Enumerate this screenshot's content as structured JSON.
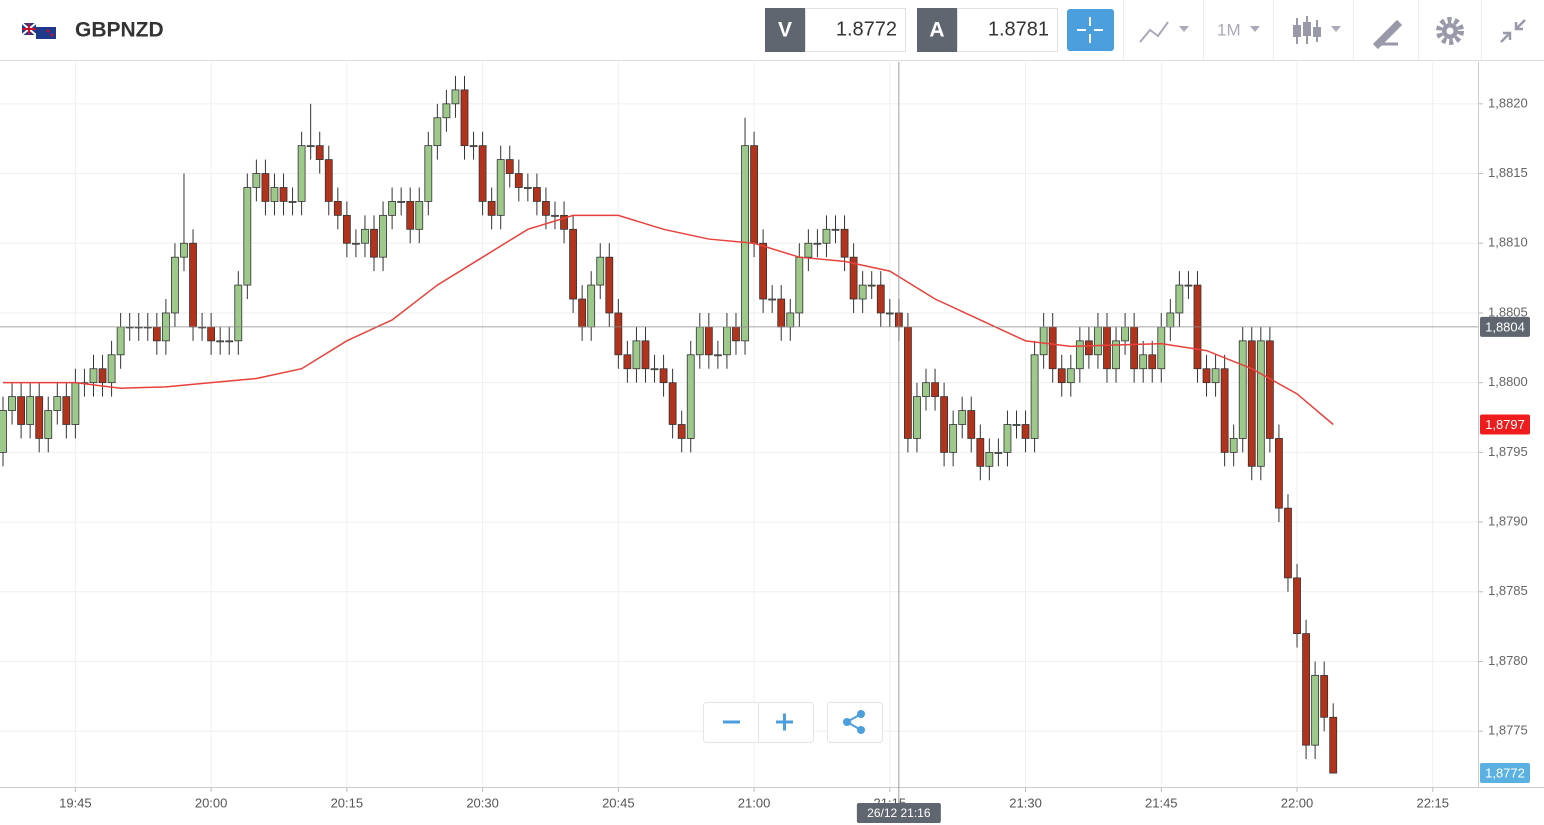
{
  "header": {
    "symbol": "GBPNZD",
    "sell_label": "V",
    "sell": "1.8772",
    "buy_label": "A",
    "buy": "1.8781",
    "timeframe": "1M"
  },
  "chart_data": {
    "type": "candlestick",
    "x": [
      "19:37",
      "19:38",
      "19:39",
      "19:40",
      "19:41",
      "19:42",
      "19:43",
      "19:44",
      "19:45",
      "19:46",
      "19:47",
      "19:48",
      "19:49",
      "19:50",
      "19:51",
      "19:52",
      "19:53",
      "19:54",
      "19:55",
      "19:56",
      "19:57",
      "19:58",
      "19:59",
      "20:00",
      "20:01",
      "20:02",
      "20:03",
      "20:04",
      "20:05",
      "20:06",
      "20:07",
      "20:08",
      "20:09",
      "20:10",
      "20:11",
      "20:12",
      "20:13",
      "20:14",
      "20:15",
      "20:16",
      "20:17",
      "20:18",
      "20:19",
      "20:20",
      "20:21",
      "20:22",
      "20:23",
      "20:24",
      "20:25",
      "20:26",
      "20:27",
      "20:28",
      "20:29",
      "20:30",
      "20:31",
      "20:32",
      "20:33",
      "20:34",
      "20:35",
      "20:36",
      "20:37",
      "20:38",
      "20:39",
      "20:40",
      "20:41",
      "20:42",
      "20:43",
      "20:44",
      "20:45",
      "20:46",
      "20:47",
      "20:48",
      "20:49",
      "20:50",
      "20:51",
      "20:52",
      "20:53",
      "20:54",
      "20:55",
      "20:56",
      "20:57",
      "20:58",
      "20:59",
      "21:00",
      "21:01",
      "21:02",
      "21:03",
      "21:04",
      "21:05",
      "21:06",
      "21:07",
      "21:08",
      "21:09",
      "21:10",
      "21:11",
      "21:12",
      "21:13",
      "21:14",
      "21:15",
      "21:16",
      "21:17",
      "21:18",
      "21:19",
      "21:20",
      "21:21",
      "21:22",
      "21:23",
      "21:24",
      "21:25",
      "21:26",
      "21:27",
      "21:28",
      "21:29",
      "21:30",
      "21:31",
      "21:32",
      "21:33",
      "21:34",
      "21:35",
      "21:36",
      "21:37",
      "21:38",
      "21:39",
      "21:40",
      "21:41",
      "21:42",
      "21:43",
      "21:44",
      "21:45",
      "21:46",
      "21:47",
      "21:48",
      "21:49",
      "21:50",
      "21:51",
      "21:52",
      "21:53",
      "21:54",
      "21:55",
      "21:56",
      "21:57",
      "21:58",
      "21:59",
      "22:00",
      "22:01",
      "22:02",
      "22:03",
      "22:04"
    ],
    "open": [
      1.8795,
      1.8798,
      1.8799,
      1.8797,
      1.8799,
      1.8796,
      1.8798,
      1.8799,
      1.8797,
      1.88,
      1.88,
      1.8801,
      1.88,
      1.8802,
      1.8804,
      1.8804,
      1.8804,
      1.8804,
      1.8803,
      1.8805,
      1.8809,
      1.881,
      1.8804,
      1.8804,
      1.8803,
      1.8803,
      1.8803,
      1.8807,
      1.8814,
      1.8815,
      1.8813,
      1.8814,
      1.8813,
      1.8813,
      1.8817,
      1.8817,
      1.8816,
      1.8813,
      1.8812,
      1.881,
      1.881,
      1.8811,
      1.8809,
      1.8812,
      1.8813,
      1.8813,
      1.8811,
      1.8813,
      1.8817,
      1.8819,
      1.882,
      1.8821,
      1.8817,
      1.8817,
      1.8813,
      1.8812,
      1.8816,
      1.8815,
      1.8814,
      1.8814,
      1.8813,
      1.8812,
      1.8812,
      1.8811,
      1.8806,
      1.8804,
      1.8807,
      1.8809,
      1.8805,
      1.8802,
      1.8801,
      1.8803,
      1.8801,
      1.8801,
      1.88,
      1.8797,
      1.8796,
      1.8802,
      1.8804,
      1.8802,
      1.8802,
      1.8804,
      1.8803,
      1.8817,
      1.881,
      1.8806,
      1.8806,
      1.8804,
      1.8805,
      1.8809,
      1.881,
      1.881,
      1.8811,
      1.8811,
      1.8809,
      1.8806,
      1.8807,
      1.8807,
      1.8805,
      1.8805,
      1.8804,
      1.8796,
      1.8799,
      1.88,
      1.8799,
      1.8795,
      1.8797,
      1.8798,
      1.8796,
      1.8794,
      1.8795,
      1.8795,
      1.8797,
      1.8797,
      1.8796,
      1.8802,
      1.8804,
      1.8801,
      1.88,
      1.8801,
      1.8803,
      1.8802,
      1.8804,
      1.8801,
      1.8803,
      1.8804,
      1.8801,
      1.8802,
      1.8801,
      1.8804,
      1.8805,
      1.8807,
      1.8807,
      1.8801,
      1.88,
      1.8801,
      1.8795,
      1.8796,
      1.8803,
      1.8794,
      1.8803,
      1.8796,
      1.8791,
      1.8786,
      1.8782,
      1.8774,
      1.8779,
      1.8776
    ],
    "high": [
      1.8799,
      1.88,
      1.88,
      1.88,
      1.88,
      1.8799,
      1.88,
      1.88,
      1.8801,
      1.8801,
      1.8802,
      1.8802,
      1.8803,
      1.8805,
      1.8805,
      1.8805,
      1.8805,
      1.8805,
      1.8806,
      1.881,
      1.8815,
      1.8811,
      1.8805,
      1.8805,
      1.8804,
      1.8804,
      1.8808,
      1.8815,
      1.8816,
      1.8816,
      1.8815,
      1.8815,
      1.8814,
      1.8818,
      1.882,
      1.8818,
      1.8817,
      1.8814,
      1.8813,
      1.8811,
      1.8812,
      1.8812,
      1.8813,
      1.8814,
      1.8814,
      1.8814,
      1.8814,
      1.8818,
      1.882,
      1.8821,
      1.8822,
      1.8822,
      1.8818,
      1.8818,
      1.8814,
      1.8817,
      1.8817,
      1.8816,
      1.8815,
      1.8815,
      1.8814,
      1.8813,
      1.8813,
      1.8812,
      1.8807,
      1.8808,
      1.881,
      1.881,
      1.8806,
      1.8803,
      1.8804,
      1.8804,
      1.8802,
      1.8802,
      1.8801,
      1.8798,
      1.8803,
      1.8805,
      1.8805,
      1.8803,
      1.8805,
      1.8805,
      1.8819,
      1.8818,
      1.8811,
      1.8807,
      1.8807,
      1.8806,
      1.881,
      1.8811,
      1.8811,
      1.8812,
      1.8812,
      1.8812,
      1.881,
      1.8808,
      1.8808,
      1.8808,
      1.8806,
      1.8806,
      1.8805,
      1.88,
      1.8801,
      1.8801,
      1.88,
      1.8798,
      1.8799,
      1.8799,
      1.8797,
      1.8796,
      1.8796,
      1.8798,
      1.8798,
      1.8798,
      1.8803,
      1.8805,
      1.8805,
      1.8802,
      1.8802,
      1.8804,
      1.8804,
      1.8805,
      1.8805,
      1.8804,
      1.8805,
      1.8805,
      1.8803,
      1.8803,
      1.8805,
      1.8806,
      1.8808,
      1.8808,
      1.8808,
      1.8802,
      1.8802,
      1.8802,
      1.8797,
      1.8804,
      1.8804,
      1.8804,
      1.8804,
      1.8797,
      1.8792,
      1.8787,
      1.8783,
      1.878,
      1.878,
      1.8777
    ],
    "low": [
      1.8794,
      1.8797,
      1.8796,
      1.8796,
      1.8795,
      1.8795,
      1.8797,
      1.8796,
      1.8796,
      1.8799,
      1.8799,
      1.8799,
      1.8799,
      1.8801,
      1.8803,
      1.8803,
      1.8803,
      1.8802,
      1.8802,
      1.8804,
      1.8808,
      1.8803,
      1.8803,
      1.8802,
      1.8802,
      1.8802,
      1.8802,
      1.8806,
      1.8813,
      1.8812,
      1.8812,
      1.8812,
      1.8812,
      1.8812,
      1.8816,
      1.8815,
      1.8812,
      1.8811,
      1.8809,
      1.8809,
      1.8809,
      1.8808,
      1.8808,
      1.8811,
      1.8812,
      1.881,
      1.881,
      1.8812,
      1.8816,
      1.8818,
      1.8819,
      1.8816,
      1.8816,
      1.8812,
      1.8811,
      1.8811,
      1.8814,
      1.8813,
      1.8813,
      1.8812,
      1.8811,
      1.8811,
      1.881,
      1.8805,
      1.8803,
      1.8803,
      1.8806,
      1.8804,
      1.8801,
      1.88,
      1.88,
      1.88,
      1.88,
      1.8799,
      1.8796,
      1.8795,
      1.8795,
      1.8801,
      1.8801,
      1.8801,
      1.8801,
      1.8802,
      1.8802,
      1.8809,
      1.8805,
      1.8805,
      1.8803,
      1.8803,
      1.8804,
      1.8808,
      1.8809,
      1.8809,
      1.881,
      1.8808,
      1.8805,
      1.8805,
      1.8806,
      1.8804,
      1.8804,
      1.8803,
      1.8795,
      1.8795,
      1.8798,
      1.8798,
      1.8794,
      1.8794,
      1.8796,
      1.8795,
      1.8793,
      1.8793,
      1.8794,
      1.8794,
      1.8796,
      1.8795,
      1.8795,
      1.8801,
      1.88,
      1.8799,
      1.8799,
      1.88,
      1.8801,
      1.8801,
      1.88,
      1.88,
      1.8802,
      1.88,
      1.88,
      1.88,
      1.88,
      1.8803,
      1.8804,
      1.8806,
      1.88,
      1.8799,
      1.8799,
      1.8794,
      1.8794,
      1.8795,
      1.8793,
      1.8793,
      1.8795,
      1.879,
      1.8785,
      1.8781,
      1.8773,
      1.8773,
      1.8775,
      1.8772
    ],
    "close": [
      1.8798,
      1.8799,
      1.8797,
      1.8799,
      1.8796,
      1.8798,
      1.8799,
      1.8797,
      1.88,
      1.88,
      1.8801,
      1.88,
      1.8802,
      1.8804,
      1.8804,
      1.8804,
      1.8804,
      1.8803,
      1.8805,
      1.8809,
      1.881,
      1.8804,
      1.8804,
      1.8803,
      1.8803,
      1.8803,
      1.8807,
      1.8814,
      1.8815,
      1.8813,
      1.8814,
      1.8813,
      1.8813,
      1.8817,
      1.8817,
      1.8816,
      1.8813,
      1.8812,
      1.881,
      1.881,
      1.8811,
      1.8809,
      1.8812,
      1.8813,
      1.8813,
      1.8811,
      1.8813,
      1.8817,
      1.8819,
      1.882,
      1.8821,
      1.8817,
      1.8817,
      1.8813,
      1.8812,
      1.8816,
      1.8815,
      1.8814,
      1.8814,
      1.8813,
      1.8812,
      1.8812,
      1.8811,
      1.8806,
      1.8804,
      1.8807,
      1.8809,
      1.8805,
      1.8802,
      1.8801,
      1.8803,
      1.8801,
      1.8801,
      1.88,
      1.8797,
      1.8796,
      1.8802,
      1.8804,
      1.8802,
      1.8802,
      1.8804,
      1.8803,
      1.8817,
      1.881,
      1.8806,
      1.8806,
      1.8804,
      1.8805,
      1.8809,
      1.881,
      1.881,
      1.8811,
      1.8811,
      1.8809,
      1.8806,
      1.8807,
      1.8807,
      1.8805,
      1.8805,
      1.8804,
      1.8796,
      1.8799,
      1.88,
      1.8799,
      1.8795,
      1.8797,
      1.8798,
      1.8796,
      1.8794,
      1.8795,
      1.8795,
      1.8797,
      1.8797,
      1.8796,
      1.8802,
      1.8804,
      1.8801,
      1.88,
      1.8801,
      1.8803,
      1.8802,
      1.8804,
      1.8801,
      1.8803,
      1.8804,
      1.8801,
      1.8802,
      1.8801,
      1.8804,
      1.8805,
      1.8807,
      1.8807,
      1.8801,
      1.88,
      1.8801,
      1.8795,
      1.8796,
      1.8803,
      1.8794,
      1.8803,
      1.8796,
      1.8791,
      1.8786,
      1.8782,
      1.8774,
      1.8779,
      1.8776,
      1.8772
    ],
    "up_color": "#9dc98b",
    "down_color": "#b2331c",
    "ma": {
      "color": "#e8413c",
      "end_label": "1,8797",
      "x": [
        "19:37",
        "19:40",
        "19:45",
        "19:50",
        "19:55",
        "20:00",
        "20:05",
        "20:10",
        "20:15",
        "20:20",
        "20:25",
        "20:30",
        "20:35",
        "20:40",
        "20:45",
        "20:50",
        "20:55",
        "21:00",
        "21:05",
        "21:10",
        "21:15",
        "21:20",
        "21:25",
        "21:30",
        "21:35",
        "21:40",
        "21:45",
        "21:50",
        "21:55",
        "22:00",
        "22:04"
      ],
      "values": [
        1.88,
        1.88,
        1.88,
        1.87996,
        1.87997,
        1.88,
        1.88003,
        1.8801,
        1.8803,
        1.88045,
        1.8807,
        1.8809,
        1.8811,
        1.8812,
        1.8812,
        1.8811,
        1.88103,
        1.881,
        1.8809,
        1.88087,
        1.8808,
        1.8806,
        1.88045,
        1.8803,
        1.88026,
        1.88027,
        1.88028,
        1.88023,
        1.8801,
        1.87992,
        1.8797
      ]
    },
    "last": {
      "value": 1.8772,
      "label": "1,8772",
      "color": "#5ab0e0"
    },
    "crosshair": {
      "x": "21:16",
      "x_label": "26/12 21:16",
      "y": 1.8804,
      "y_label": "1,8804"
    },
    "xlim": [
      "19:37",
      "22:20"
    ],
    "xticks": [
      "19:45",
      "20:00",
      "20:15",
      "20:30",
      "20:45",
      "21:00",
      "21:15",
      "21:30",
      "21:45",
      "22:00",
      "22:15"
    ],
    "ylim": [
      1.8771,
      1.8823
    ],
    "yticks": [
      {
        "value": 1.8775,
        "label": "1,8775"
      },
      {
        "value": 1.878,
        "label": "1,8780"
      },
      {
        "value": 1.8785,
        "label": "1,8785"
      },
      {
        "value": 1.879,
        "label": "1,8790"
      },
      {
        "value": 1.8795,
        "label": "1,8795"
      },
      {
        "value": 1.88,
        "label": "1,8800"
      },
      {
        "value": 1.8805,
        "label": "1,8805"
      },
      {
        "value": 1.881,
        "label": "1,8810"
      },
      {
        "value": 1.8815,
        "label": "1,8815"
      },
      {
        "value": 1.882,
        "label": "1,8820"
      }
    ],
    "grid": true
  }
}
